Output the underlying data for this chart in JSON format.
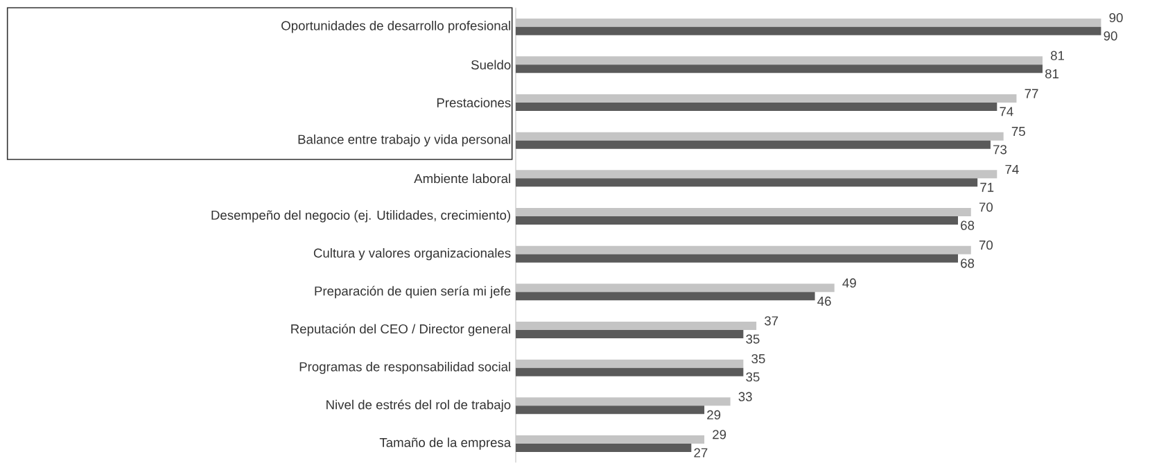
{
  "chart_data": {
    "type": "bar",
    "orientation": "horizontal",
    "data_labels": true,
    "categories": [
      "Oportunidades de desarrollo profesional",
      "Sueldo",
      "Prestaciones",
      "Balance entre trabajo y vida personal",
      "Ambiente laboral",
      "Desempeño del negocio (ej. Utilidades, crecimiento)",
      "Cultura y valores organizacionales",
      "Preparación de quien sería mi jefe",
      "Reputación del CEO / Director general",
      "Programas de responsabilidad social",
      "Nivel de estrés del rol de trabajo",
      "Tamaño de la empresa"
    ],
    "series": [
      {
        "color": "#c4c4c4",
        "values": [
          90,
          81,
          77,
          75,
          74,
          70,
          70,
          49,
          37,
          35,
          33,
          29
        ]
      },
      {
        "color": "#5a5a5a",
        "values": [
          90,
          81,
          74,
          73,
          71,
          68,
          68,
          46,
          35,
          35,
          29,
          27
        ]
      }
    ]
  }
}
